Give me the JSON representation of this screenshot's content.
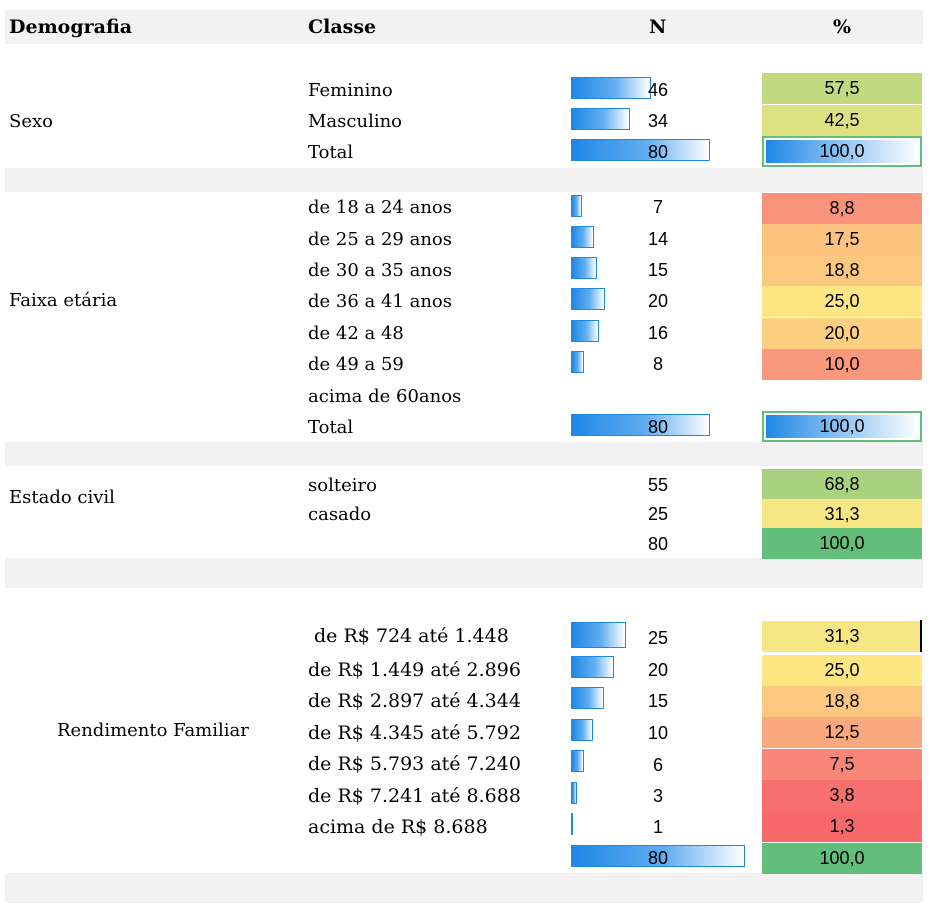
{
  "headers": {
    "demografia": "Demografia",
    "classe": "Classe",
    "n": "N",
    "pct": "%"
  },
  "sexo": {
    "label": "Sexo",
    "rows": [
      {
        "classe": "Feminino",
        "n": "46",
        "pct": "57,5",
        "color": "#c1d97f"
      },
      {
        "classe": "Masculino",
        "n": "34",
        "pct": "42,5",
        "color": "#dce282"
      },
      {
        "classe": "Total",
        "n": "80",
        "pct": "100,0",
        "color": "total"
      }
    ]
  },
  "faixa": {
    "label": "Faixa etária",
    "rows": [
      {
        "classe": "de 18 a 24 anos",
        "n": "7",
        "pct": "8,8",
        "color": "#f8937b"
      },
      {
        "classe": "de 25 a 29 anos",
        "n": "14",
        "pct": "17,5",
        "color": "#fcc27e"
      },
      {
        "classe": "de 30 a 35 anos",
        "n": "15",
        "pct": "18,8",
        "color": "#fcc87f"
      },
      {
        "classe": "de 36 a 41 anos",
        "n": "20",
        "pct": "25,0",
        "color": "#fee783"
      },
      {
        "classe": "de 42 a 48",
        "n": "16",
        "pct": "20,0",
        "color": "#fdcf80"
      },
      {
        "classe": "de 49 a 59",
        "n": "8",
        "pct": "10,0",
        "color": "#f9987c"
      },
      {
        "classe": "acima de 60anos",
        "n": "",
        "pct": "",
        "color": "none"
      },
      {
        "classe": "Total",
        "n": "80",
        "pct": "100,0",
        "color": "total"
      }
    ]
  },
  "estado": {
    "label": "Estado civil",
    "rows": [
      {
        "classe": "solteiro",
        "n": "55",
        "pct": "68,8",
        "color": "#a9d27f"
      },
      {
        "classe": "casado",
        "n": "25",
        "pct": "31,3",
        "color": "#f7e784"
      },
      {
        "classe": "",
        "n": "80",
        "pct": "100,0",
        "color": "#63be7b"
      }
    ]
  },
  "renda": {
    "label": "Rendimento Familiar",
    "rows": [
      {
        "classe": "de R$ 724 até 1.448",
        "n": "25",
        "pct": "31,3",
        "color": "#f7e784"
      },
      {
        "classe": "de R$ 1.449 até 2.896",
        "n": "20",
        "pct": "25,0",
        "color": "#fee783"
      },
      {
        "classe": "de  R$ 2.897 até 4.344",
        "n": "15",
        "pct": "18,8",
        "color": "#fcc87f"
      },
      {
        "classe": "de R$ 4.345 até 5.792",
        "n": "10",
        "pct": "12,5",
        "color": "#faa87d"
      },
      {
        "classe": "de R$ 5.793 até 7.240",
        "n": "6",
        "pct": "7,5",
        "color": "#f8877a"
      },
      {
        "classe": "de R$ 7.241 até 8.688",
        "n": "3",
        "pct": "3,8",
        "color": "#f76f6f"
      },
      {
        "classe": "acima de R$ 8.688",
        "n": "1",
        "pct": "1,3",
        "color": "#f8696b"
      },
      {
        "classe": "",
        "n": "80",
        "pct": "100,0",
        "color": "#63be7b"
      }
    ]
  }
}
